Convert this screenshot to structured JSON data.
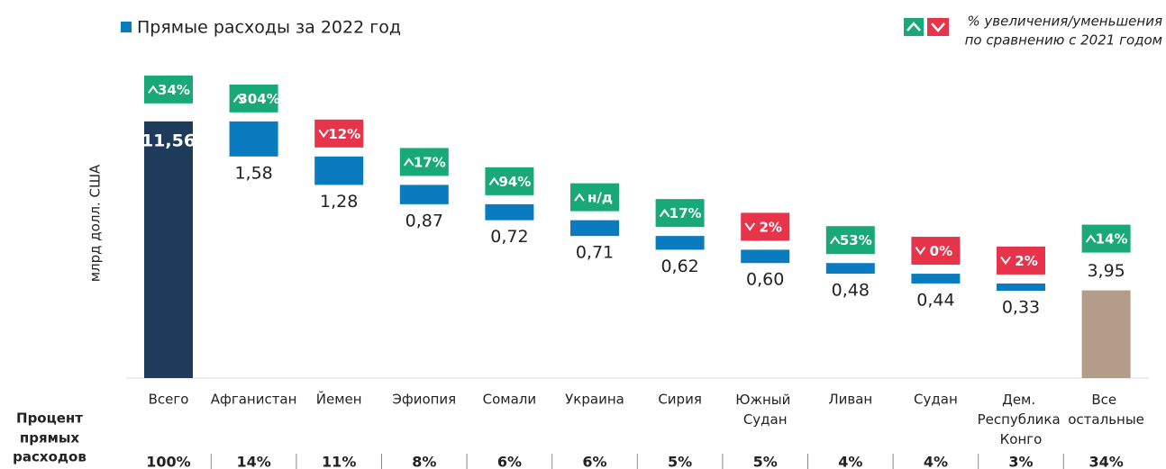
{
  "chart_data": {
    "type": "waterfall",
    "legend": "Прямые расходы за 2022 год",
    "note": [
      "% увеличения/уменьшения",
      "по сравнению с 2021 годом"
    ],
    "y_label": "млрд долл. США",
    "row_header": [
      "Процент",
      "прямых",
      "расходов"
    ],
    "categories": [
      "Всего",
      "Афганистан",
      "Йемен",
      "Эфиопия",
      "Сомали",
      "Украина",
      "Сирия",
      "Южный Судан",
      "Ливан",
      "Судан",
      "Дем. Республика Конго",
      "Все остальные"
    ],
    "values": [
      11.56,
      1.58,
      1.28,
      0.87,
      0.72,
      0.71,
      0.62,
      0.6,
      0.48,
      0.44,
      0.33,
      3.95
    ],
    "value_labels": [
      "11,56",
      "1,58",
      "1,28",
      "0,87",
      "0,72",
      "0,71",
      "0,62",
      "0,60",
      "0,48",
      "0,44",
      "0,33",
      "3,95"
    ],
    "changes": [
      "34%",
      "304%",
      "12%",
      "17%",
      "94%",
      "н/д",
      "17%",
      "2%",
      "53%",
      "0%",
      "2%",
      "14%"
    ],
    "change_directions": [
      "up",
      "up",
      "down",
      "up",
      "up",
      "up",
      "up",
      "down",
      "up",
      "down",
      "down",
      "up"
    ],
    "shares": [
      "100%",
      "14%",
      "11%",
      "8%",
      "6%",
      "6%",
      "5%",
      "5%",
      "4%",
      "4%",
      "3%",
      "34%"
    ],
    "colors": {
      "total": "#1f3b5c",
      "step": "#0b7bc0",
      "rest": "#b39c88",
      "up": "#19a979",
      "down": "#e8344b"
    },
    "ylim": [
      0,
      12
    ]
  }
}
